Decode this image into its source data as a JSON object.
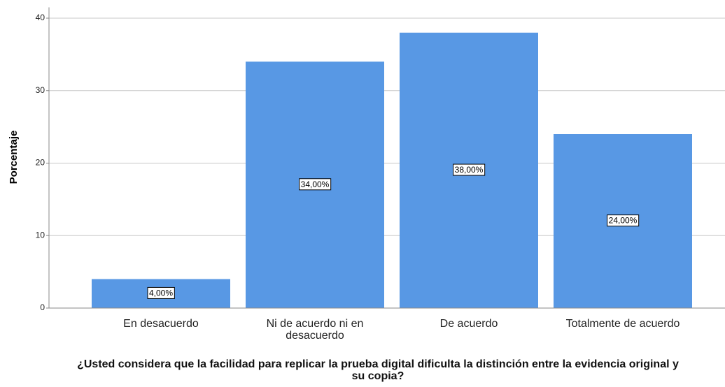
{
  "chart_data": {
    "type": "bar",
    "title": "¿Usted considera que la facilidad para replicar la prueba digital dificulta la distinción entre la evidencia original y su copia?",
    "ylabel": "Porcentaje",
    "categories": [
      "En desacuerdo",
      "Ni de acuerdo ni en desacuerdo",
      "De acuerdo",
      "Totalmente de acuerdo"
    ],
    "values": [
      4,
      34,
      38,
      24
    ],
    "value_labels": [
      "4,00%",
      "34,00%",
      "38,00%",
      "24,00%"
    ],
    "color": "#5898e4",
    "ylim": [
      0,
      41.5
    ],
    "yticks": [
      0,
      10,
      20,
      30,
      40
    ],
    "grid": true
  }
}
